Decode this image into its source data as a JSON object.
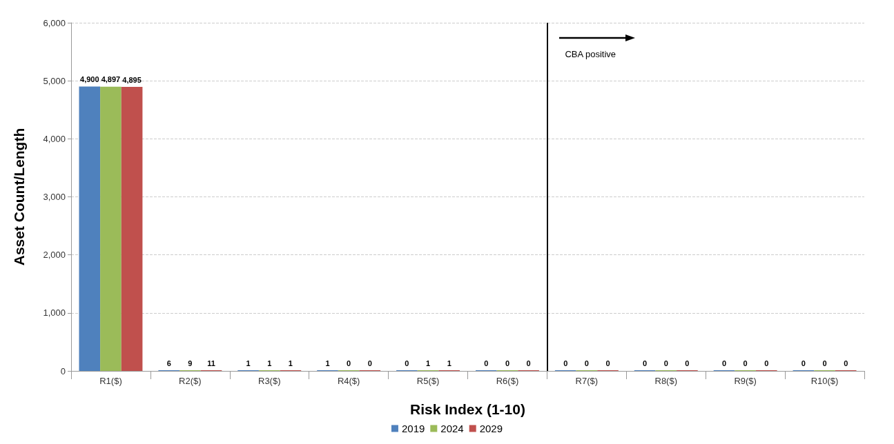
{
  "chart_data": {
    "type": "bar",
    "categories": [
      "R1($)",
      "R2($)",
      "R3($)",
      "R4($)",
      "R5($)",
      "R6($)",
      "R7($)",
      "R8($)",
      "R9($)",
      "R10($)"
    ],
    "series": [
      {
        "name": "2019",
        "color": "#4f81bd",
        "values": [
          4900,
          6,
          1,
          1,
          0,
          0,
          0,
          0,
          0,
          0
        ],
        "value_labels": [
          "4,900",
          "6",
          "1",
          "1",
          "0",
          "0",
          "0",
          "0",
          "0",
          "0"
        ]
      },
      {
        "name": "2024",
        "color": "#9bbb59",
        "values": [
          4897,
          9,
          1,
          0,
          1,
          0,
          0,
          0,
          0,
          0
        ],
        "value_labels": [
          "4,897",
          "9",
          "1",
          "0",
          "1",
          "0",
          "0",
          "0",
          "0",
          "0"
        ]
      },
      {
        "name": "2029",
        "color": "#c0504d",
        "values": [
          4895,
          11,
          1,
          0,
          1,
          0,
          0,
          0,
          0,
          0
        ],
        "value_labels": [
          "4,895",
          "11",
          "1",
          "0",
          "1",
          "0",
          "0",
          "0",
          "0",
          "0"
        ]
      }
    ],
    "xlabel": "Risk Index (1-10)",
    "ylabel": "Asset Count/Length",
    "ylim": [
      0,
      6000
    ],
    "yticks": [
      {
        "value": 0,
        "label": "0"
      },
      {
        "value": 1000,
        "label": "1,000"
      },
      {
        "value": 2000,
        "label": "2,000"
      },
      {
        "value": 3000,
        "label": "3,000"
      },
      {
        "value": 4000,
        "label": "4,000"
      },
      {
        "value": 5000,
        "label": "5,000"
      },
      {
        "value": 6000,
        "label": "6,000"
      }
    ],
    "grid": "y",
    "legend": "bottom",
    "ref_lines": [
      {
        "axis": "x",
        "value": "R7($)",
        "label": "CBA positive",
        "color": "#000000"
      }
    ]
  }
}
